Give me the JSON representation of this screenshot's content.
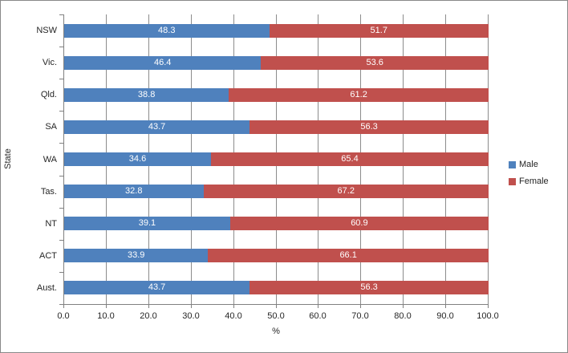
{
  "chart_data": {
    "type": "bar",
    "orientation": "horizontal",
    "stacked": true,
    "title": "",
    "xlabel": "%",
    "ylabel": "State",
    "xlim": [
      0,
      100
    ],
    "xticks": [
      "0.0",
      "10.0",
      "20.0",
      "30.0",
      "40.0",
      "50.0",
      "60.0",
      "70.0",
      "80.0",
      "90.0",
      "100.0"
    ],
    "grid": true,
    "legend_position": "right",
    "categories": [
      "NSW",
      "Vic.",
      "Qld.",
      "SA",
      "WA",
      "Tas.",
      "NT",
      "ACT",
      "Aust."
    ],
    "series": [
      {
        "name": "Male",
        "color": "#4F81BD",
        "values": [
          48.3,
          46.4,
          38.8,
          43.7,
          34.6,
          32.8,
          39.1,
          33.9,
          43.7
        ]
      },
      {
        "name": "Female",
        "color": "#C0504D",
        "values": [
          51.7,
          53.6,
          61.2,
          56.3,
          65.4,
          67.2,
          60.9,
          66.1,
          56.3
        ]
      }
    ],
    "data_label_color": "#FFFFFF",
    "colors": {
      "gridline": "#8C8C8C",
      "axis": "#808080",
      "text": "#262626",
      "border": "#898989"
    }
  }
}
